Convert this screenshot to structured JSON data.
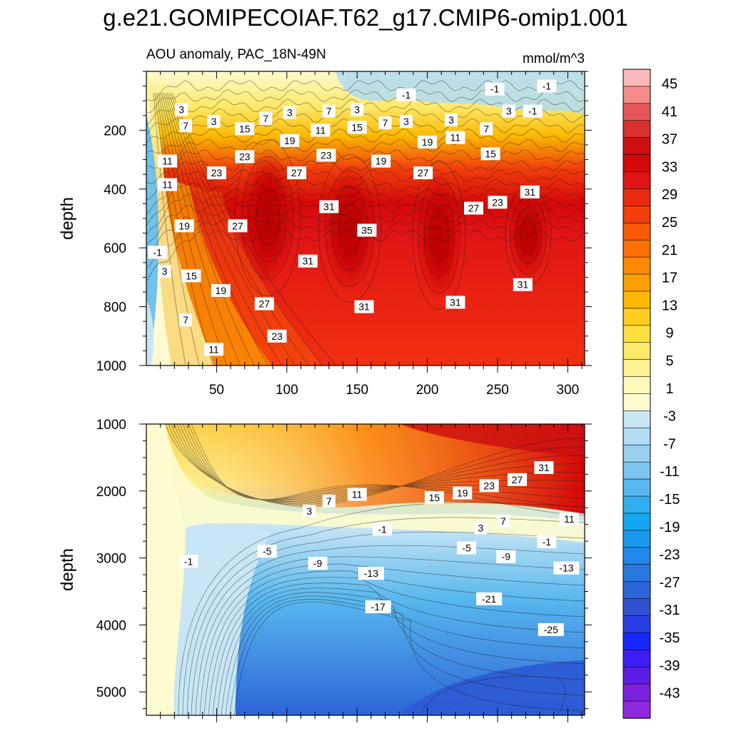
{
  "title": "g.e21.GOMIPECOIAF.T62_g17.CMIP6-omip1.001",
  "colors": {
    "frame": "#000000",
    "contour_line": "#1a1a1a",
    "label_bg": "#ffffff"
  },
  "chart_data": [
    {
      "type": "heatmap",
      "name": "upper-panel",
      "subtitle_left": "AOU anomaly, PAC_18N-49N",
      "subtitle_right": "mmol/m^3",
      "ylabel": "depth",
      "xlim": [
        0,
        312
      ],
      "ylim": [
        1000,
        0
      ],
      "xticks": [
        50,
        100,
        150,
        200,
        250,
        300
      ],
      "xticklabels": [
        "50",
        "100",
        "150",
        "200",
        "250",
        "300"
      ],
      "yticks": [
        200,
        400,
        600,
        800,
        1000
      ],
      "yticklabels": [
        "200",
        "400",
        "600",
        "800",
        "1000"
      ],
      "contour_labels": [
        {
          "x": 285,
          "y": 50,
          "text": "-1"
        },
        {
          "x": 248,
          "y": 60,
          "text": "-1"
        },
        {
          "x": 185,
          "y": 80,
          "text": "-1"
        },
        {
          "x": 25,
          "y": 130,
          "text": "3"
        },
        {
          "x": 48,
          "y": 170,
          "text": "3"
        },
        {
          "x": 102,
          "y": 140,
          "text": "3"
        },
        {
          "x": 150,
          "y": 130,
          "text": "3"
        },
        {
          "x": 185,
          "y": 170,
          "text": "3"
        },
        {
          "x": 217,
          "y": 165,
          "text": "3"
        },
        {
          "x": 258,
          "y": 135,
          "text": "3"
        },
        {
          "x": 275,
          "y": 135,
          "text": "-1"
        },
        {
          "x": 28,
          "y": 185,
          "text": "7"
        },
        {
          "x": 85,
          "y": 160,
          "text": "7"
        },
        {
          "x": 130,
          "y": 135,
          "text": "7"
        },
        {
          "x": 170,
          "y": 175,
          "text": "7"
        },
        {
          "x": 242,
          "y": 195,
          "text": "7"
        },
        {
          "x": 70,
          "y": 195,
          "text": "15"
        },
        {
          "x": 150,
          "y": 190,
          "text": "15"
        },
        {
          "x": 245,
          "y": 280,
          "text": "15"
        },
        {
          "x": 102,
          "y": 235,
          "text": "19"
        },
        {
          "x": 200,
          "y": 240,
          "text": "19"
        },
        {
          "x": 167,
          "y": 305,
          "text": "19"
        },
        {
          "x": 124,
          "y": 200,
          "text": "11"
        },
        {
          "x": 220,
          "y": 225,
          "text": "11"
        },
        {
          "x": 15,
          "y": 305,
          "text": "11"
        },
        {
          "x": 15,
          "y": 385,
          "text": "11"
        },
        {
          "x": 70,
          "y": 290,
          "text": "23"
        },
        {
          "x": 128,
          "y": 285,
          "text": "23"
        },
        {
          "x": 50,
          "y": 345,
          "text": "23"
        },
        {
          "x": 250,
          "y": 445,
          "text": "23"
        },
        {
          "x": 107,
          "y": 345,
          "text": "27"
        },
        {
          "x": 197,
          "y": 345,
          "text": "27"
        },
        {
          "x": 233,
          "y": 465,
          "text": "27"
        },
        {
          "x": 65,
          "y": 525,
          "text": "27"
        },
        {
          "x": 130,
          "y": 460,
          "text": "31"
        },
        {
          "x": 273,
          "y": 410,
          "text": "31"
        },
        {
          "x": 27,
          "y": 525,
          "text": "19"
        },
        {
          "x": 157,
          "y": 540,
          "text": "35"
        },
        {
          "x": 8,
          "y": 615,
          "text": "-1"
        },
        {
          "x": 13,
          "y": 680,
          "text": "3"
        },
        {
          "x": 32,
          "y": 695,
          "text": "15"
        },
        {
          "x": 53,
          "y": 745,
          "text": "19"
        },
        {
          "x": 115,
          "y": 645,
          "text": "31"
        },
        {
          "x": 84,
          "y": 790,
          "text": "27"
        },
        {
          "x": 155,
          "y": 800,
          "text": "31"
        },
        {
          "x": 220,
          "y": 785,
          "text": "31"
        },
        {
          "x": 268,
          "y": 725,
          "text": "31"
        },
        {
          "x": 28,
          "y": 845,
          "text": "7"
        },
        {
          "x": 93,
          "y": 900,
          "text": "23"
        },
        {
          "x": 48,
          "y": 945,
          "text": "11"
        }
      ]
    },
    {
      "type": "heatmap",
      "name": "lower-panel",
      "ylabel": "depth",
      "xlim": [
        0,
        312
      ],
      "ylim": [
        5350,
        1000
      ],
      "yticks": [
        1000,
        2000,
        3000,
        4000,
        5000
      ],
      "yticklabels": [
        "1000",
        "2000",
        "3000",
        "4000",
        "5000"
      ],
      "contour_labels": [
        {
          "x": 283,
          "y": 1650,
          "text": "31"
        },
        {
          "x": 264,
          "y": 1830,
          "text": "27"
        },
        {
          "x": 244,
          "y": 1920,
          "text": "23"
        },
        {
          "x": 225,
          "y": 2030,
          "text": "19"
        },
        {
          "x": 205,
          "y": 2100,
          "text": "15"
        },
        {
          "x": 150,
          "y": 2050,
          "text": "11"
        },
        {
          "x": 130,
          "y": 2150,
          "text": "7"
        },
        {
          "x": 116,
          "y": 2300,
          "text": "3"
        },
        {
          "x": 254,
          "y": 2450,
          "text": "7"
        },
        {
          "x": 238,
          "y": 2550,
          "text": "3"
        },
        {
          "x": 301,
          "y": 2420,
          "text": "11"
        },
        {
          "x": 168,
          "y": 2570,
          "text": "-1"
        },
        {
          "x": 285,
          "y": 2760,
          "text": "-1"
        },
        {
          "x": 228,
          "y": 2850,
          "text": "-5"
        },
        {
          "x": 86,
          "y": 2900,
          "text": "-5"
        },
        {
          "x": 256,
          "y": 2980,
          "text": "-9"
        },
        {
          "x": 122,
          "y": 3080,
          "text": "-9"
        },
        {
          "x": 30,
          "y": 3050,
          "text": "-1"
        },
        {
          "x": 160,
          "y": 3230,
          "text": "-13"
        },
        {
          "x": 299,
          "y": 3150,
          "text": "-13"
        },
        {
          "x": 244,
          "y": 3610,
          "text": "-21"
        },
        {
          "x": 165,
          "y": 3730,
          "text": "-17"
        },
        {
          "x": 288,
          "y": 4070,
          "text": "-25"
        }
      ]
    }
  ],
  "colorbar": {
    "labels": [
      "45",
      "41",
      "37",
      "33",
      "29",
      "25",
      "21",
      "17",
      "13",
      "9",
      "5",
      "1",
      "-3",
      "-7",
      "-11",
      "-15",
      "-19",
      "-23",
      "-27",
      "-31",
      "-35",
      "-39",
      "-43"
    ],
    "colors": [
      "#fbb8b8",
      "#f48a8a",
      "#e65858",
      "#d93030",
      "#cc1010",
      "#d40808",
      "#e01414",
      "#e82a10",
      "#f03e0c",
      "#f85a08",
      "#fc7004",
      "#fd8a02",
      "#fca000",
      "#fbb800",
      "#fccc20",
      "#fde040",
      "#fde968",
      "#fdf090",
      "#fef8b8",
      "#fdfbcf",
      "#c8e6f5",
      "#b2dcf2",
      "#98d0f0",
      "#7cc4ef",
      "#58b8ee",
      "#30aef0",
      "#14a6f0",
      "#1898ec",
      "#2088e8",
      "#2878e0",
      "#2c64d8",
      "#3050d0",
      "#2a3ee8",
      "#1628ff",
      "#3c1cf4",
      "#5c1ce4",
      "#7a20dc",
      "#9028e0"
    ]
  }
}
